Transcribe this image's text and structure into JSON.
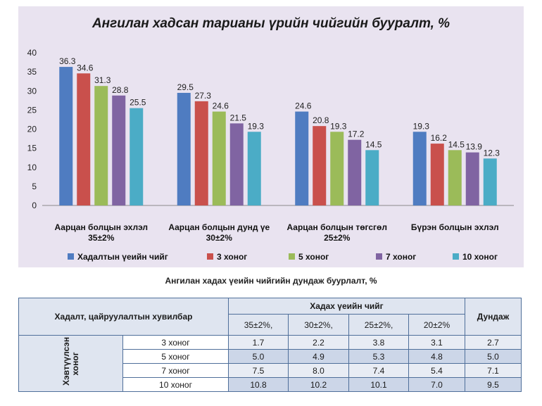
{
  "chart_data": {
    "type": "bar",
    "title": "Ангилан хадсан тарианы үрийн чийгийн бууралт, %",
    "categories": [
      [
        "Аарцан болцын эхлэл",
        "35±2%"
      ],
      [
        "Аарцан болцын дунд үе",
        "30±2%"
      ],
      [
        "Аарцан болцын төгсгөл",
        "25±2%"
      ],
      [
        "Бүрэн болцын эхлэл"
      ]
    ],
    "series": [
      {
        "name": "Хадалтын үеийн чийг",
        "color": "#4f7cc1",
        "values": [
          36.3,
          29.5,
          24.6,
          19.3
        ]
      },
      {
        "name": "3 хоног",
        "color": "#c9504c",
        "values": [
          34.6,
          27.3,
          20.8,
          16.2
        ]
      },
      {
        "name": "5 хоног",
        "color": "#9bbb59",
        "values": [
          31.3,
          24.6,
          19.3,
          14.5
        ]
      },
      {
        "name": "7 хоног",
        "color": "#8064a2",
        "values": [
          28.8,
          21.5,
          17.2,
          13.9
        ]
      },
      {
        "name": "10 хоног",
        "color": "#4bacc6",
        "values": [
          25.5,
          19.3,
          14.5,
          12.3
        ]
      }
    ],
    "ylim": [
      0,
      40
    ],
    "yticks": [
      0,
      5,
      10,
      15,
      20,
      25,
      30,
      35,
      40
    ],
    "grid": false,
    "legend": "bottom"
  },
  "table": {
    "caption": "Ангилан хадах үеийн чийгийн дундаж буурлалт, %",
    "header_left": "Хадалт, цайруулалтын  хувилбар",
    "header_group": "Хадах үеийн чийг",
    "header_avg": "Дундаж",
    "moisture_cols": [
      "35±2%,",
      "30±2%,",
      "25±2%,",
      "20±2%"
    ],
    "row_group_label": "Хэвтүүлсэн хоног",
    "rows": [
      {
        "label": "3 хоног",
        "values": [
          "1.7",
          "2.2",
          "3.8",
          "3.1"
        ],
        "avg": "2.7"
      },
      {
        "label": "5 хоног",
        "values": [
          "5.0",
          "4.9",
          "5.3",
          "4.8"
        ],
        "avg": "5.0"
      },
      {
        "label": "7 хоног",
        "values": [
          "7.5",
          "8.0",
          "7.4",
          "5.4"
        ],
        "avg": "7.1"
      },
      {
        "label": "10 хоног",
        "values": [
          "10.8",
          "10.2",
          "10.1",
          "7.0"
        ],
        "avg": "9.5"
      }
    ]
  }
}
